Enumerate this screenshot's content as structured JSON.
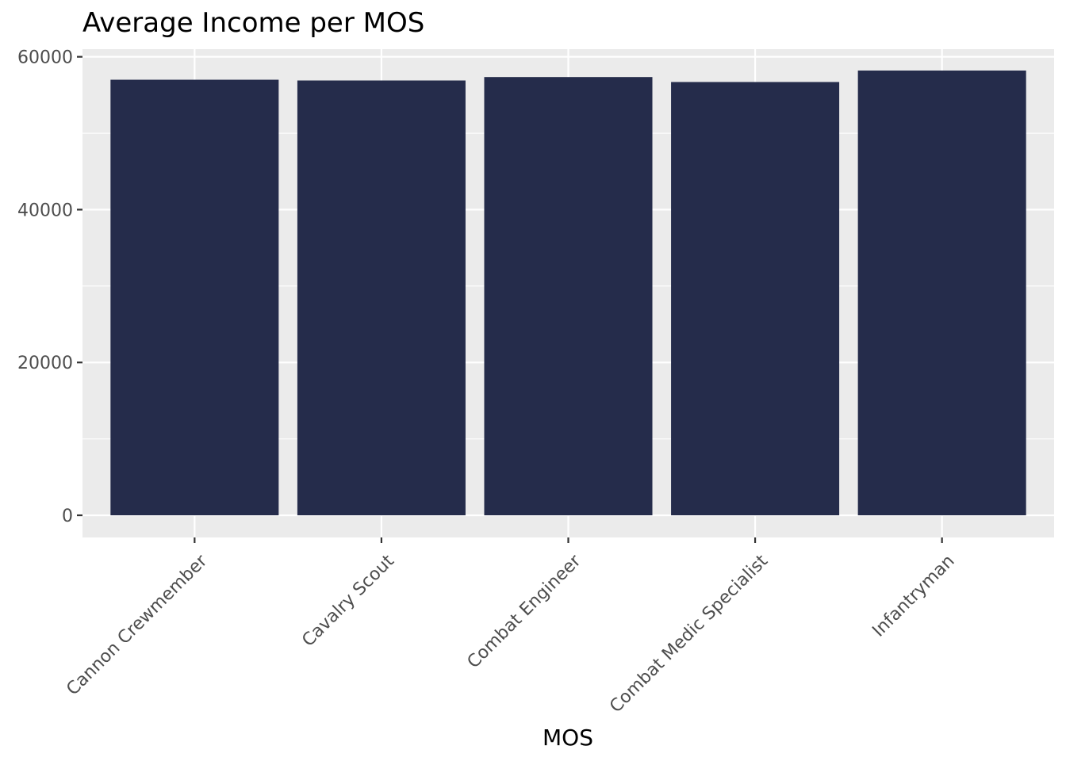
{
  "chart_data": {
    "type": "bar",
    "title": "Average Income per MOS",
    "xlabel": "MOS",
    "ylabel": "",
    "categories": [
      "Cannon Crewmember",
      "Cavalry Scout",
      "Combat Engineer",
      "Combat Medic Specialist",
      "Infantryman"
    ],
    "values": [
      57000,
      56900,
      57350,
      56700,
      58200
    ],
    "ylim": [
      -2900,
      61000
    ],
    "yticks": [
      0,
      20000,
      40000,
      60000
    ],
    "ytick_labels": [
      "0",
      "20000",
      "40000",
      "60000"
    ],
    "grid": true,
    "legend": "none",
    "colors": {
      "bar": "#252c4b",
      "panel": "#ebebeb",
      "grid": "#ffffff",
      "tick": "#333333",
      "tick_label": "#4d4d4d"
    }
  }
}
